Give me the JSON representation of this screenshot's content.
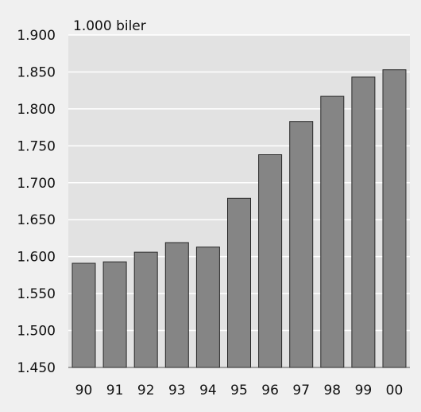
{
  "chart_data": {
    "type": "bar",
    "title": "",
    "ylabel": "1.000 biler",
    "xlabel": "",
    "categories": [
      "90",
      "91",
      "92",
      "93",
      "94",
      "95",
      "96",
      "97",
      "98",
      "99",
      "00"
    ],
    "values": [
      1591,
      1593,
      1606,
      1619,
      1613,
      1679,
      1738,
      1783,
      1817,
      1843,
      1853
    ],
    "ylim": [
      1450,
      1900
    ],
    "yticks": [
      1450,
      1500,
      1550,
      1600,
      1650,
      1700,
      1750,
      1800,
      1850,
      1900
    ],
    "ytick_labels": [
      "1.450",
      "1.500",
      "1.550",
      "1.600",
      "1.650",
      "1.700",
      "1.750",
      "1.800",
      "1.850",
      "1.900"
    ],
    "grid": true,
    "legend": "none",
    "colors": {
      "background": "#f0f0f0",
      "plot_area": "#e2e2e2",
      "bar": "#858585",
      "bar_edge": "#2a2a2a",
      "grid": "#ffffff"
    }
  }
}
